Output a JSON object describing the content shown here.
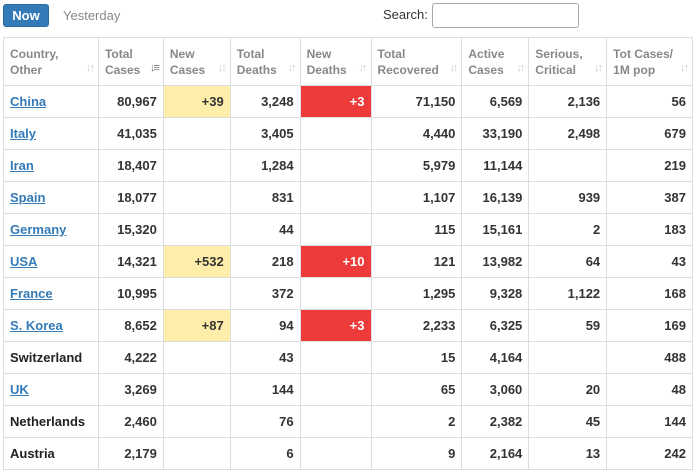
{
  "toolbar": {
    "now_label": "Now",
    "yesterday_label": "Yesterday",
    "search_label": "Search:",
    "search_value": ""
  },
  "colors": {
    "primary": "#337ab7",
    "new_cases_highlight": "#ffeeaa",
    "new_deaths_highlight": "#ed3a3a"
  },
  "table": {
    "columns": [
      {
        "label_1": "Country,",
        "label_2": "Other"
      },
      {
        "label_1": "Total",
        "label_2": "Cases"
      },
      {
        "label_1": "New",
        "label_2": "Cases"
      },
      {
        "label_1": "Total",
        "label_2": "Deaths"
      },
      {
        "label_1": "New",
        "label_2": "Deaths"
      },
      {
        "label_1": "Total",
        "label_2": "Recovered"
      },
      {
        "label_1": "Active",
        "label_2": "Cases"
      },
      {
        "label_1": "Serious,",
        "label_2": "Critical"
      },
      {
        "label_1": "Tot Cases/",
        "label_2": "1M pop"
      }
    ],
    "rows": [
      {
        "country": "China",
        "link": true,
        "total_cases": "80,967",
        "new_cases": "+39",
        "total_deaths": "3,248",
        "new_deaths": "+3",
        "total_recovered": "71,150",
        "active_cases": "6,569",
        "serious_critical": "2,136",
        "per_million": "56"
      },
      {
        "country": "Italy",
        "link": true,
        "total_cases": "41,035",
        "new_cases": "",
        "total_deaths": "3,405",
        "new_deaths": "",
        "total_recovered": "4,440",
        "active_cases": "33,190",
        "serious_critical": "2,498",
        "per_million": "679"
      },
      {
        "country": "Iran",
        "link": true,
        "total_cases": "18,407",
        "new_cases": "",
        "total_deaths": "1,284",
        "new_deaths": "",
        "total_recovered": "5,979",
        "active_cases": "11,144",
        "serious_critical": "",
        "per_million": "219"
      },
      {
        "country": "Spain",
        "link": true,
        "total_cases": "18,077",
        "new_cases": "",
        "total_deaths": "831",
        "new_deaths": "",
        "total_recovered": "1,107",
        "active_cases": "16,139",
        "serious_critical": "939",
        "per_million": "387"
      },
      {
        "country": "Germany",
        "link": true,
        "total_cases": "15,320",
        "new_cases": "",
        "total_deaths": "44",
        "new_deaths": "",
        "total_recovered": "115",
        "active_cases": "15,161",
        "serious_critical": "2",
        "per_million": "183"
      },
      {
        "country": "USA",
        "link": true,
        "total_cases": "14,321",
        "new_cases": "+532",
        "total_deaths": "218",
        "new_deaths": "+10",
        "total_recovered": "121",
        "active_cases": "13,982",
        "serious_critical": "64",
        "per_million": "43"
      },
      {
        "country": "France",
        "link": true,
        "total_cases": "10,995",
        "new_cases": "",
        "total_deaths": "372",
        "new_deaths": "",
        "total_recovered": "1,295",
        "active_cases": "9,328",
        "serious_critical": "1,122",
        "per_million": "168"
      },
      {
        "country": "S. Korea",
        "link": true,
        "total_cases": "8,652",
        "new_cases": "+87",
        "total_deaths": "94",
        "new_deaths": "+3",
        "total_recovered": "2,233",
        "active_cases": "6,325",
        "serious_critical": "59",
        "per_million": "169"
      },
      {
        "country": "Switzerland",
        "link": false,
        "total_cases": "4,222",
        "new_cases": "",
        "total_deaths": "43",
        "new_deaths": "",
        "total_recovered": "15",
        "active_cases": "4,164",
        "serious_critical": "",
        "per_million": "488"
      },
      {
        "country": "UK",
        "link": true,
        "total_cases": "3,269",
        "new_cases": "",
        "total_deaths": "144",
        "new_deaths": "",
        "total_recovered": "65",
        "active_cases": "3,060",
        "serious_critical": "20",
        "per_million": "48"
      },
      {
        "country": "Netherlands",
        "link": false,
        "total_cases": "2,460",
        "new_cases": "",
        "total_deaths": "76",
        "new_deaths": "",
        "total_recovered": "2",
        "active_cases": "2,382",
        "serious_critical": "45",
        "per_million": "144"
      },
      {
        "country": "Austria",
        "link": false,
        "total_cases": "2,179",
        "new_cases": "",
        "total_deaths": "6",
        "new_deaths": "",
        "total_recovered": "9",
        "active_cases": "2,164",
        "serious_critical": "13",
        "per_million": "242"
      }
    ]
  }
}
